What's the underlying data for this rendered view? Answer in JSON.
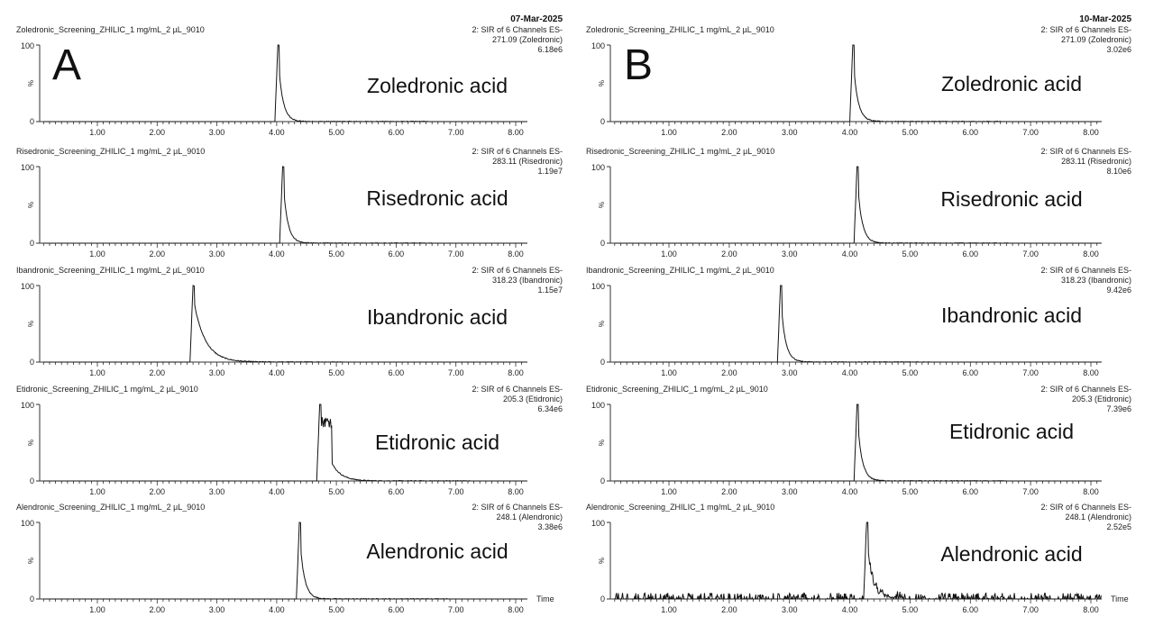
{
  "chart_data": [
    {
      "type": "line",
      "panel": "A",
      "date": "07-Mar-2025",
      "x_axis": {
        "ticks": [
          "1.00",
          "2.00",
          "3.00",
          "4.00",
          "5.00",
          "6.00",
          "7.00",
          "8.00"
        ],
        "xlim": [
          0.1,
          8.3
        ],
        "xlabel": ""
      },
      "traces": [
        {
          "sample": "Zoledronic_Screening_ZHILIC_1 mg/mL_2 µL_9010",
          "channel": "2: SIR of 6 Channels ES-",
          "mass": "271.09 (Zoledronic)",
          "intensity": "6.18e6",
          "compound": "Zoledronic acid",
          "ymax_label": "100",
          "ylabel": "%",
          "peak_x": 4.02,
          "xlabel": ""
        },
        {
          "sample": "Risedronic_Screening_ZHILIC_1 mg/mL_2 µL_9010",
          "channel": "2: SIR of 6 Channels ES-",
          "mass": "283.11 (Risedronic)",
          "intensity": "1.19e7",
          "compound": "Risedronic acid",
          "ymax_label": "100",
          "ylabel": "%",
          "peak_x": 4.1,
          "xlabel": ""
        },
        {
          "sample": "Ibandronic_Screening_ZHILIC_1 mg/mL_2 µL_9010",
          "channel": "2: SIR of 6 Channels ES-",
          "mass": "318.23 (Ibandronic)",
          "intensity": "1.15e7",
          "compound": "Ibandronic acid",
          "ymax_label": "100",
          "ylabel": "%",
          "peak_x": 2.6,
          "xlabel": ""
        },
        {
          "sample": "Etidronic_Screening_ZHILIC_1 mg/mL_2 µL_9010",
          "channel": "2: SIR of 6 Channels ES-",
          "mass": "205.3 (Etidronic)",
          "intensity": "6.34e6",
          "compound": "Etidronic acid",
          "ymax_label": "100",
          "ylabel": "%",
          "peak_x": 4.72,
          "xlabel": ""
        },
        {
          "sample": "Alendronic_Screening_ZHILIC_1 mg/mL_2 µL_9010",
          "channel": "2: SIR of 6 Channels ES-",
          "mass": "248.1 (Alendronic)",
          "intensity": "3.38e6",
          "compound": "Alendronic acid",
          "ymax_label": "100",
          "ylabel": "%",
          "peak_x": 4.38,
          "xlabel": "Time"
        }
      ]
    },
    {
      "type": "line",
      "panel": "B",
      "date": "10-Mar-2025",
      "x_axis": {
        "ticks": [
          "1.00",
          "2.00",
          "3.00",
          "4.00",
          "5.00",
          "6.00",
          "7.00",
          "8.00"
        ],
        "xlim": [
          0.1,
          8.3
        ],
        "xlabel": ""
      },
      "traces": [
        {
          "sample": "Zoledronic_Screening_ZHILIC_1 mg/mL_2 µL_9010",
          "channel": "2: SIR of 6 Channels ES-",
          "mass": "271.09 (Zoledronic)",
          "intensity": "3.02e6",
          "compound": "Zoledronic acid",
          "ymax_label": "100",
          "ylabel": "%",
          "peak_x": 4.05,
          "xlabel": ""
        },
        {
          "sample": "Risedronic_Screening_ZHILIC_1 mg/mL_2 µL_9010",
          "channel": "2: SIR of 6 Channels ES-",
          "mass": "283.11 (Risedronic)",
          "intensity": "8.10e6",
          "compound": "Risedronic acid",
          "ymax_label": "100",
          "ylabel": "%",
          "peak_x": 4.12,
          "xlabel": ""
        },
        {
          "sample": "Ibandronic_Screening_ZHILIC_1 mg/mL_2 µL_9010",
          "channel": "2: SIR of 6 Channels ES-",
          "mass": "318.23 (Ibandronic)",
          "intensity": "9.42e6",
          "compound": "Ibandronic acid",
          "ymax_label": "100",
          "ylabel": "%",
          "peak_x": 2.85,
          "xlabel": ""
        },
        {
          "sample": "Etidronic_Screening_ZHILIC_1 mg/mL_2 µL_9010",
          "channel": "2: SIR of 6 Channels ES-",
          "mass": "205.3 (Etidronic)",
          "intensity": "7.39e6",
          "compound": "Etidronic acid",
          "ymax_label": "100",
          "ylabel": "%",
          "peak_x": 4.12,
          "xlabel": ""
        },
        {
          "sample": "Alendronic_Screening_ZHILIC_1 mg/mL_2 µL_9010",
          "channel": "2: SIR of 6 Channels ES-",
          "mass": "248.1 (Alendronic)",
          "intensity": "2.52e5",
          "compound": "Alendronic acid",
          "ymax_label": "100",
          "ylabel": "%",
          "peak_x": 4.28,
          "noisy": true,
          "xlabel": "Time"
        }
      ]
    }
  ]
}
